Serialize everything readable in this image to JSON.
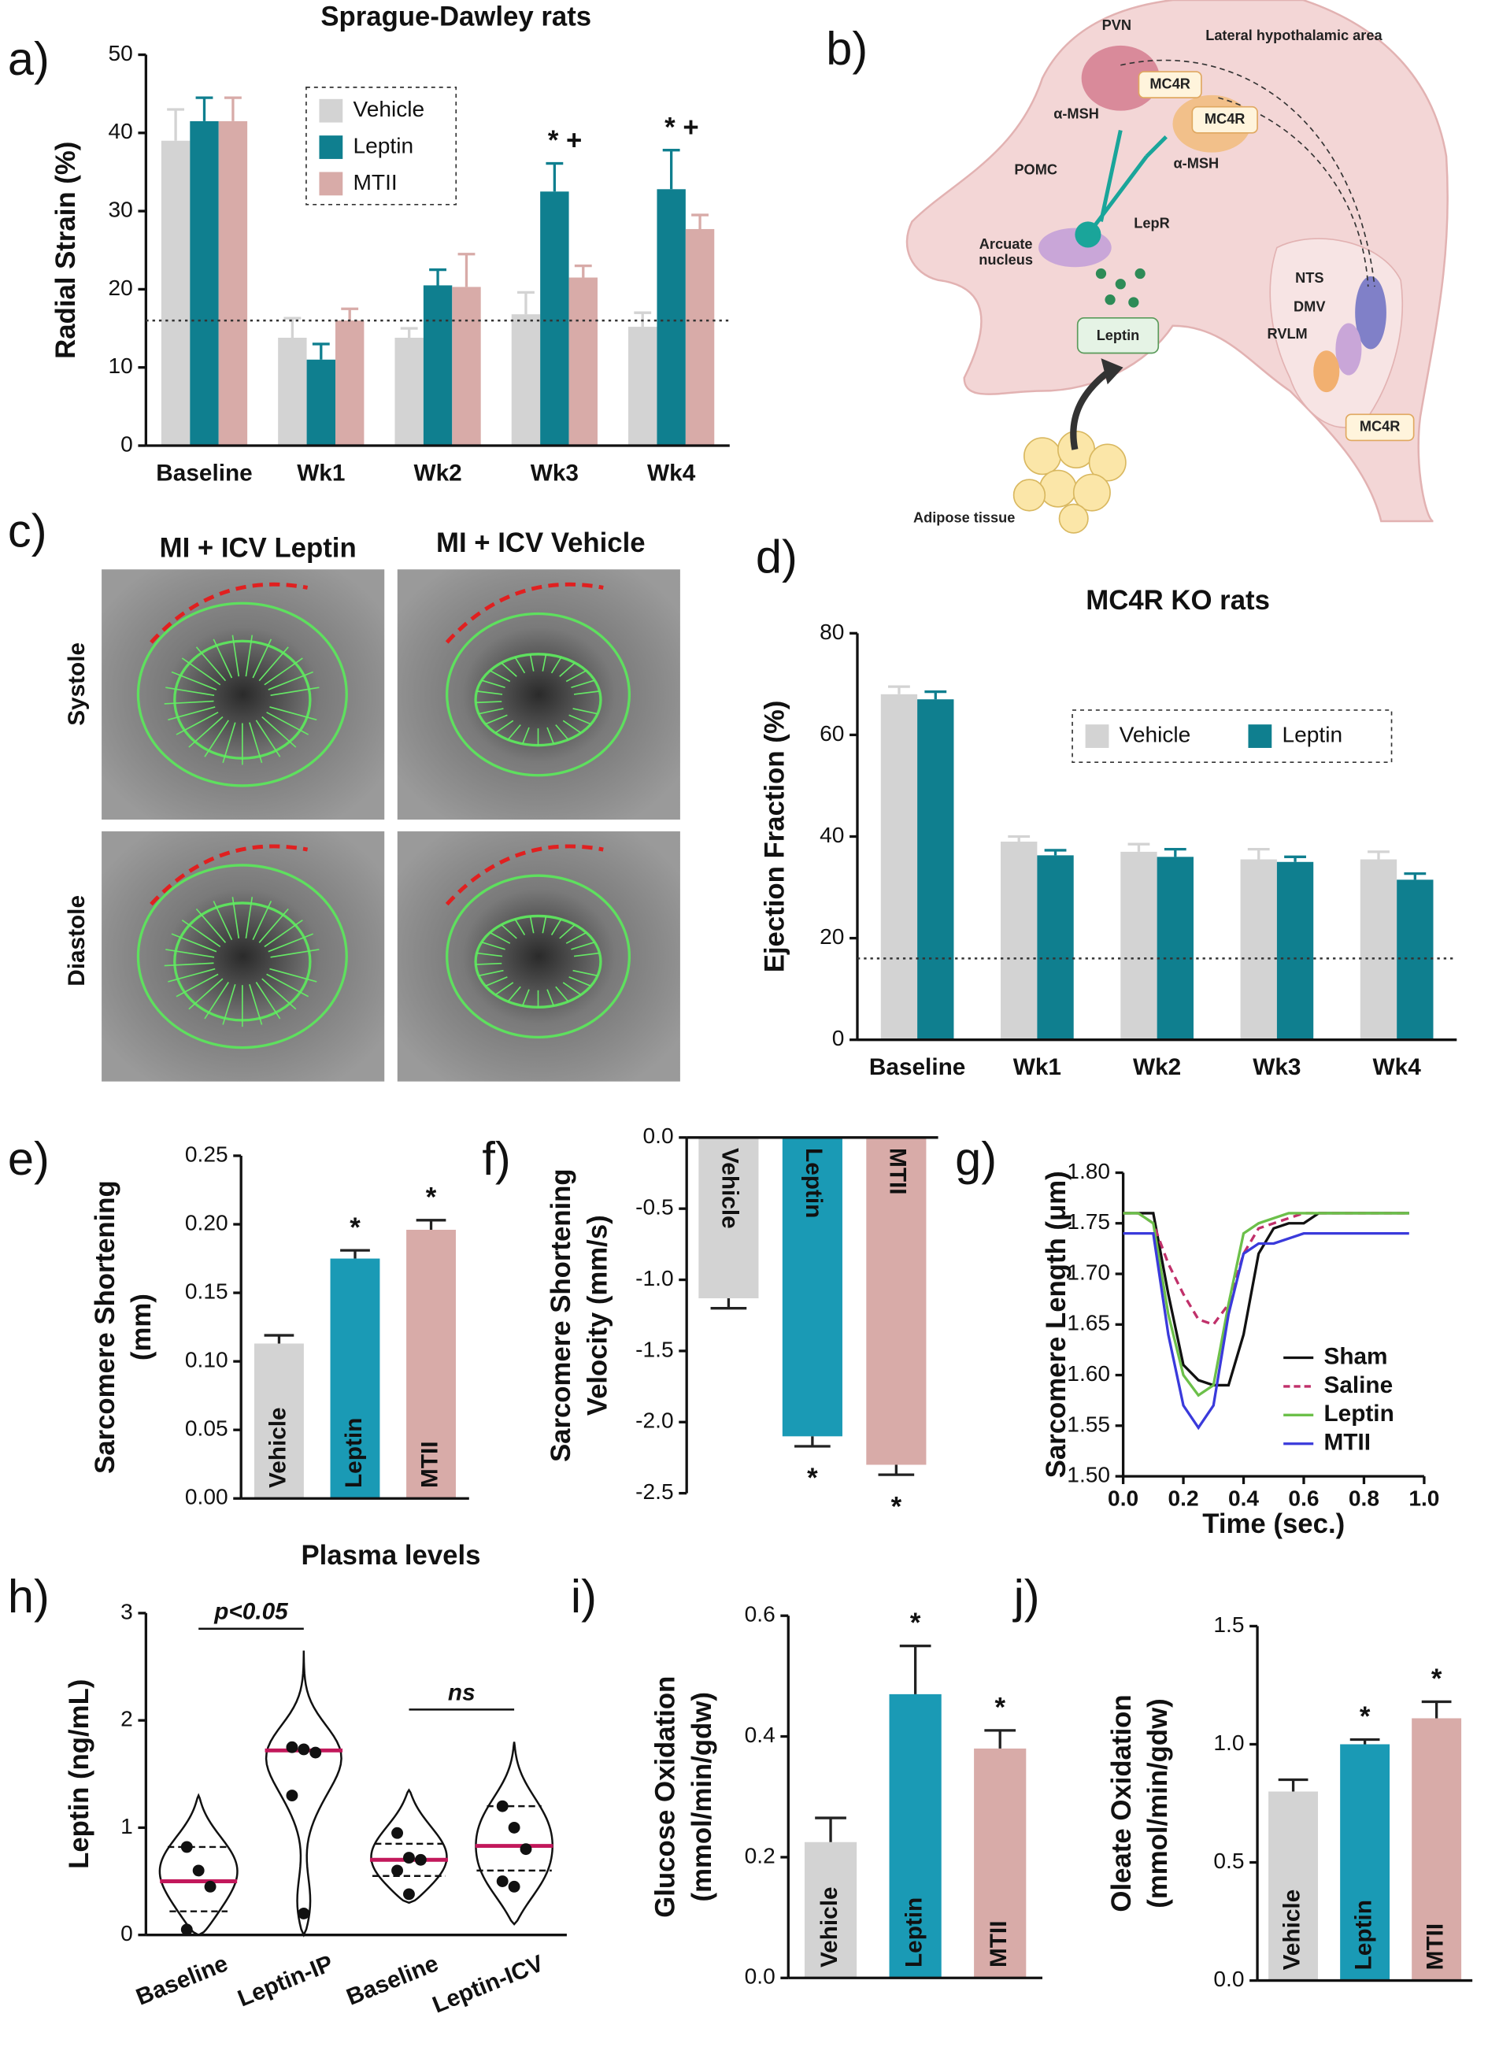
{
  "panels": [
    "a)",
    "b)",
    "c)",
    "d)",
    "e)",
    "f)",
    "g)",
    "h)",
    "i)",
    "j)"
  ],
  "echo": {
    "columns": [
      "MI + ICV Leptin",
      "MI + ICV Vehicle"
    ],
    "rows": [
      "Systole",
      "Diastole"
    ]
  },
  "diagram": {
    "labels": [
      "PVN",
      "Lateral hypothalamic area",
      "MC4R",
      "MC4R",
      "α-MSH",
      "α-MSH",
      "POMC",
      "LepR",
      [
        "Arcuate",
        "nucleus"
      ],
      "Leptin",
      "NTS",
      "DMV",
      "RVLM",
      "MC4R",
      "Adipose tissue"
    ]
  },
  "chart_data": [
    {
      "type": "bar",
      "title": "Sprague-Dawley rats",
      "ylabel": "Radial  Strain (%)",
      "categories": [
        "Baseline",
        "Wk1",
        "Wk2",
        "Wk3",
        "Wk4"
      ],
      "series": [
        {
          "name": "Vehicle",
          "color": "#d3d3d3",
          "values": [
            39,
            13.8,
            13.8,
            16.8,
            15.2
          ],
          "errors": [
            4,
            2.5,
            1.2,
            2.8,
            1.8
          ]
        },
        {
          "name": "Leptin",
          "color": "#0f7f8f",
          "values": [
            41.5,
            11,
            20.5,
            32.5,
            32.8
          ],
          "errors": [
            3,
            2,
            2,
            3.6,
            5
          ]
        },
        {
          "name": "MTII",
          "color": "#d8aba8",
          "values": [
            41.5,
            16,
            20.3,
            21.5,
            27.7
          ],
          "errors": [
            3,
            1.5,
            4.2,
            1.5,
            1.8
          ]
        }
      ],
      "annotations": [
        null,
        null,
        null,
        "* +",
        "* +"
      ],
      "reference_line": 16,
      "ylim": [
        0,
        50
      ],
      "yticks": [
        0,
        10,
        20,
        30,
        40,
        50
      ],
      "legend": "upper center"
    },
    {
      "type": "bar",
      "title": "MC4R KO rats",
      "ylabel": "Ejection Fraction (%)",
      "categories": [
        "Baseline",
        "Wk1",
        "Wk2",
        "Wk3",
        "Wk4"
      ],
      "series": [
        {
          "name": "Vehicle",
          "color": "#d3d3d3",
          "values": [
            68,
            39,
            37,
            35.5,
            35.5
          ],
          "errors": [
            1.5,
            1,
            1.5,
            2,
            1.5
          ]
        },
        {
          "name": "Leptin",
          "color": "#0f7f8f",
          "values": [
            67,
            36.3,
            36,
            35,
            31.5
          ],
          "errors": [
            1.5,
            1,
            1.5,
            1,
            1.2
          ]
        }
      ],
      "reference_line": 16,
      "ylim": [
        0,
        80
      ],
      "yticks": [
        0,
        20,
        40,
        60,
        80
      ],
      "legend": "upper right"
    },
    {
      "type": "bar",
      "ylabel": [
        "Sarcomere Shortening",
        "(mm)"
      ],
      "categories": [
        "Vehicle",
        "Leptin",
        "MTII"
      ],
      "colors": [
        "#d3d3d3",
        "#1a9ab5",
        "#d8aba8"
      ],
      "values": [
        0.113,
        0.175,
        0.196
      ],
      "errors": [
        0.006,
        0.006,
        0.007
      ],
      "annotations": [
        null,
        "*",
        "*"
      ],
      "ylim": [
        0,
        0.25
      ],
      "yticks": [
        {
          "value": 0,
          "label": "0.00"
        },
        0.05,
        {
          "value": 0.1,
          "label": "0.10"
        },
        0.15,
        {
          "value": 0.2,
          "label": "0.20"
        },
        0.25
      ]
    },
    {
      "type": "bar",
      "ylabel": [
        "Sarcomere Shortening",
        "Velocity (mm/s)"
      ],
      "categories": [
        "Vehicle",
        "Leptin",
        "MTII"
      ],
      "colors": [
        "#d3d3d3",
        "#1a9ab5",
        "#d8aba8"
      ],
      "values": [
        -1.13,
        -2.1,
        -2.3
      ],
      "errors": [
        0.07,
        0.07,
        0.07
      ],
      "annotations": [
        null,
        "*",
        "*"
      ],
      "ylim": [
        -2.5,
        0
      ],
      "yticks": [
        {
          "value": 0,
          "label": "0.0"
        },
        -0.5,
        {
          "value": -1,
          "label": "-1.0"
        },
        -1.5,
        {
          "value": -2,
          "label": "-2.0"
        },
        -2.5
      ]
    },
    {
      "type": "line",
      "xlabel": "Time (sec.)",
      "ylabel": "Sarcomere Length (μm)",
      "x": [
        0,
        0.05,
        0.1,
        0.15,
        0.2,
        0.25,
        0.3,
        0.35,
        0.4,
        0.45,
        0.5,
        0.55,
        0.6,
        0.65,
        0.7,
        0.8,
        0.9,
        0.95
      ],
      "series": [
        {
          "name": "Sham",
          "color": "#111111",
          "style": "solid",
          "values": [
            1.76,
            1.76,
            1.76,
            1.68,
            1.61,
            1.595,
            1.59,
            1.59,
            1.64,
            1.72,
            1.745,
            1.75,
            1.75,
            1.76,
            1.76,
            1.76,
            1.76,
            1.76
          ]
        },
        {
          "name": "Saline",
          "color": "#c0306a",
          "style": "dashed",
          "values": [
            1.76,
            1.76,
            1.75,
            1.71,
            1.68,
            1.655,
            1.65,
            1.67,
            1.72,
            1.745,
            1.75,
            1.755,
            1.76,
            1.76,
            1.76,
            1.76,
            1.76,
            1.76
          ]
        },
        {
          "name": "Leptin",
          "color": "#6cc04a",
          "style": "solid",
          "values": [
            1.76,
            1.76,
            1.75,
            1.66,
            1.6,
            1.58,
            1.59,
            1.67,
            1.74,
            1.75,
            1.755,
            1.76,
            1.76,
            1.76,
            1.76,
            1.76,
            1.76,
            1.76
          ]
        },
        {
          "name": "MTII",
          "color": "#3a3adb",
          "style": "solid",
          "values": [
            1.74,
            1.74,
            1.74,
            1.64,
            1.57,
            1.548,
            1.57,
            1.66,
            1.72,
            1.73,
            1.73,
            1.735,
            1.74,
            1.74,
            1.74,
            1.74,
            1.74,
            1.74
          ]
        }
      ],
      "xlim": [
        0,
        1
      ],
      "xticks": [
        {
          "value": 0,
          "label": "0.0"
        },
        0.2,
        0.4,
        0.6,
        0.8,
        {
          "value": 1,
          "label": "1.0"
        }
      ],
      "ylim": [
        1.5,
        1.8
      ],
      "yticks": [
        {
          "value": 1.5,
          "label": "1.50"
        },
        1.55,
        {
          "value": 1.6,
          "label": "1.60"
        },
        1.65,
        {
          "value": 1.7,
          "label": "1.70"
        },
        1.75,
        {
          "value": 1.8,
          "label": "1.80"
        }
      ],
      "legend": "lower right"
    },
    {
      "type": "violin",
      "title": "Plasma levels",
      "ylabel": "Leptin (ng/mL)",
      "categories": [
        "Baseline",
        "Leptin-IP",
        "Baseline",
        "Leptin-ICV"
      ],
      "groups": [
        {
          "points": [
            0.82,
            0.6,
            0.45,
            0.05
          ],
          "median": 0.5,
          "quartiles": [
            0.22,
            0.82
          ],
          "extent": [
            0,
            1.3
          ]
        },
        {
          "points": [
            1.75,
            1.73,
            1.7,
            1.3,
            0.2
          ],
          "median": 1.72,
          "quartiles": null,
          "extent": [
            0,
            2.65
          ]
        },
        {
          "points": [
            0.95,
            0.72,
            0.7,
            0.6,
            0.38
          ],
          "median": 0.7,
          "quartiles": [
            0.55,
            0.85
          ],
          "extent": [
            0.3,
            1.35
          ]
        },
        {
          "points": [
            1.2,
            1.0,
            0.8,
            0.5,
            0.45
          ],
          "median": 0.83,
          "quartiles": [
            0.6,
            1.2
          ],
          "extent": [
            0.1,
            1.8
          ]
        }
      ],
      "median_color": "#c2185b",
      "annotations": [
        "p<0.05",
        "ns"
      ],
      "ylim": [
        0,
        3
      ],
      "yticks": [
        0,
        1,
        2,
        3
      ]
    },
    {
      "type": "bar",
      "ylabel": [
        "Glucose Oxidation",
        "(mmol/min/gdw)"
      ],
      "categories": [
        "Vehicle",
        "Leptin",
        "MTII"
      ],
      "colors": [
        "#d3d3d3",
        "#1a9ab5",
        "#d8aba8"
      ],
      "values": [
        0.225,
        0.47,
        0.38
      ],
      "errors": [
        0.04,
        0.08,
        0.03
      ],
      "annotations": [
        null,
        "*",
        "*"
      ],
      "ylim": [
        0,
        0.6
      ],
      "yticks": [
        {
          "value": 0,
          "label": "0.0"
        },
        0.2,
        0.4,
        0.6
      ]
    },
    {
      "type": "bar",
      "ylabel": [
        "Oleate Oxidation",
        "(mmol/min/gdw)"
      ],
      "categories": [
        "Vehicle",
        "Leptin",
        "MTII"
      ],
      "colors": [
        "#d3d3d3",
        "#1a9ab5",
        "#d8aba8"
      ],
      "values": [
        0.8,
        1.0,
        1.11
      ],
      "errors": [
        0.05,
        0.02,
        0.07
      ],
      "annotations": [
        null,
        "*",
        "*"
      ],
      "ylim": [
        0,
        1.5
      ],
      "yticks": [
        {
          "value": 0,
          "label": "0.0"
        },
        0.5,
        {
          "value": 1,
          "label": "1.0"
        },
        1.5
      ]
    }
  ]
}
